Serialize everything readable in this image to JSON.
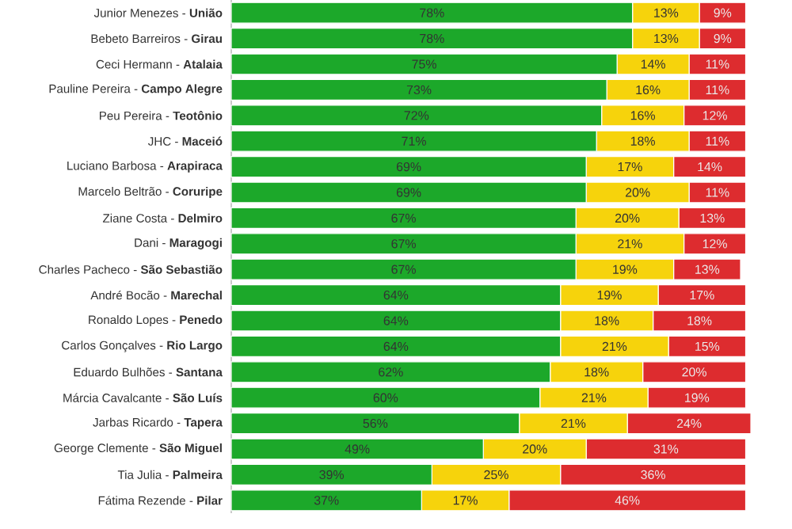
{
  "chart_data": {
    "type": "bar",
    "orientation": "horizontal",
    "stacked": true,
    "categories": [
      "Junior Menezes - **União**",
      "Bebeto Barreiros - **Girau**",
      "Ceci Hermann - **Atalaia**",
      "Pauline Pereira - **Campo Alegre**",
      "Peu Pereira - **Teotônio**",
      "JHC - **Maceió**",
      "Luciano Barbosa - **Arapiraca**",
      "Marcelo Beltrão - **Coruripe**",
      "Ziane Costa - **Delmiro**",
      "Dani - **Maragogi**",
      "Charles Pacheco - **São Sebastião**",
      "André Bocão - **Marechal**",
      "Ronaldo Lopes - **Penedo**",
      "Carlos Gonçalves - **Rio Largo**",
      "Eduardo Bulhões - **Santana**",
      "Márcia Cavalcante - **São Luís**",
      "Jarbas Ricardo - **Tapera**",
      "George Clemente - **São Miguel**",
      "Tia Julia - **Palmeira**",
      "Fátima Rezende - **Pilar**"
    ],
    "series": [
      {
        "color": "#1ca82a",
        "values": [
          78,
          78,
          75,
          73,
          72,
          71,
          69,
          69,
          67,
          67,
          67,
          64,
          64,
          64,
          62,
          60,
          56,
          49,
          39,
          37
        ],
        "value_labels": [
          "78%",
          "78%",
          "75%",
          "73%",
          "72%",
          "71%",
          "69%",
          "69%",
          "67%",
          "67%",
          "67%",
          "64%",
          "64%",
          "64%",
          "62%",
          "60%",
          "56%",
          "49%",
          "39%",
          "37%"
        ]
      },
      {
        "color": "#f6d30c",
        "values": [
          13,
          13,
          14,
          16,
          16,
          18,
          17,
          20,
          20,
          21,
          19,
          19,
          18,
          21,
          18,
          21,
          21,
          20,
          25,
          17
        ],
        "value_labels": [
          "13%",
          "13%",
          "14%",
          "16%",
          "16%",
          "18%",
          "17%",
          "20%",
          "20%",
          "21%",
          "19%",
          "19%",
          "18%",
          "21%",
          "18%",
          "21%",
          "21%",
          "20%",
          "25%",
          "17%"
        ]
      },
      {
        "color": "#dd2c2f",
        "values": [
          9,
          9,
          11,
          11,
          12,
          11,
          14,
          11,
          13,
          12,
          13,
          17,
          18,
          15,
          20,
          19,
          24,
          31,
          36,
          46
        ],
        "value_labels": [
          "9%",
          "9%",
          "11%",
          "11%",
          "12%",
          "11%",
          "14%",
          "11%",
          "13%",
          "12%",
          "13%",
          "17%",
          "18%",
          "15%",
          "20%",
          "19%",
          "24%",
          "31%",
          "36%",
          "46%"
        ]
      }
    ],
    "tick_labels": "y"
  }
}
